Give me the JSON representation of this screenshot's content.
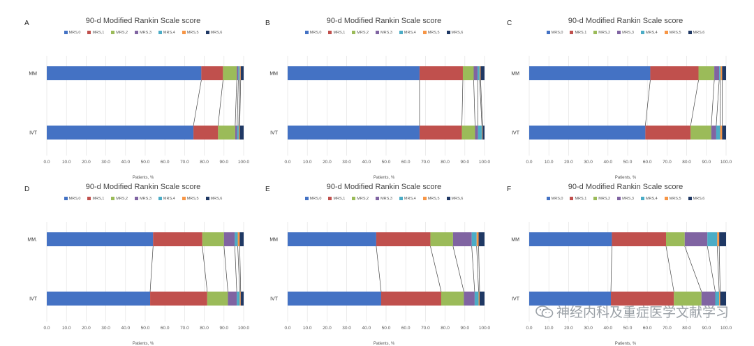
{
  "colors": {
    "MRS,0": "#4472C4",
    "MRS,1": "#C0504D",
    "MRS,2": "#9BBB59",
    "MRS,3": "#8064A2",
    "MRS,4": "#4BACC6",
    "MRS,5": "#F79646",
    "MRS,6": "#1F3864"
  },
  "watermark": {
    "text": "神经内科及重症医学文献学习",
    "icon": "wechat-icon"
  },
  "chart_data": [
    {
      "panel": "A",
      "type": "bar",
      "title": "90-d Modified Rankin Scale score",
      "xlabel": "Patients, %",
      "xlim": [
        0,
        100
      ],
      "xticks": [
        "0.0",
        "10.0",
        "20.0",
        "30.0",
        "40.0",
        "50.0",
        "60.0",
        "70.0",
        "80.0",
        "90.0",
        "100.0"
      ],
      "legend": [
        "MRS,0",
        "MRS,1",
        "MRS,2",
        "MRS,3",
        "MRS,4",
        "MRS,5",
        "MRS,6"
      ],
      "categories": [
        "MM",
        "IVT"
      ],
      "rows": [
        {
          "label": "MM",
          "values": [
            78.5,
            11.0,
            7.0,
            0.8,
            0.7,
            0.5,
            1.5
          ]
        },
        {
          "label": "IVT",
          "values": [
            74.5,
            12.5,
            8.7,
            1.0,
            0.8,
            0.5,
            2.0
          ]
        }
      ]
    },
    {
      "panel": "B",
      "type": "bar",
      "title": "90-d Modified Rankin Scale score",
      "xlabel": "Patients, %",
      "xlim": [
        0,
        100
      ],
      "xticks": [
        "0.0",
        "10.0",
        "20.0",
        "30.0",
        "40.0",
        "50.0",
        "60.0",
        "70.0",
        "80.0",
        "90.0",
        "100.0"
      ],
      "legend": [
        "MRS,0",
        "MRS,1",
        "MRS,2",
        "MRS,3",
        "MRS,4",
        "MRS,5",
        "MRS,6"
      ],
      "categories": [
        "MM",
        "IVT"
      ],
      "rows": [
        {
          "label": "MM",
          "values": [
            67.0,
            22.0,
            5.5,
            2.0,
            1.0,
            0.5,
            2.0
          ]
        },
        {
          "label": "IVT",
          "values": [
            67.0,
            21.5,
            6.7,
            1.5,
            2.0,
            0.3,
            1.0
          ]
        }
      ]
    },
    {
      "panel": "C",
      "type": "bar",
      "title": "90-d Modified Rankin Scale score",
      "xlabel": "Patients, %",
      "xlim": [
        0,
        100
      ],
      "xticks": [
        "0.0",
        "10.0",
        "20.0",
        "30.0",
        "40.0",
        "50.0",
        "60.0",
        "70.0",
        "80.0",
        "90.0",
        "100.0"
      ],
      "legend": [
        "MRS,0",
        "MRS,1",
        "MRS,2",
        "MRS,3",
        "MRS,4",
        "MRS,5",
        "MRS,6"
      ],
      "categories": [
        "MM",
        "IVT"
      ],
      "rows": [
        {
          "label": "MM",
          "values": [
            61.5,
            24.5,
            8.0,
            2.5,
            0.7,
            0.8,
            2.0
          ]
        },
        {
          "label": "IVT",
          "values": [
            59.0,
            23.0,
            10.5,
            2.5,
            2.0,
            1.0,
            2.0
          ]
        }
      ]
    },
    {
      "panel": "D",
      "type": "bar",
      "title": "90-d Modified Rankin Scale score",
      "xlabel": "Patients, %",
      "xlim": [
        0,
        100
      ],
      "xticks": [
        "0.0",
        "10.0",
        "20.0",
        "30.0",
        "40.0",
        "50.0",
        "60.0",
        "70.0",
        "80.0",
        "90.0",
        "100.0"
      ],
      "legend": [
        "MRS,0",
        "MRS,1",
        "MRS,2",
        "MRS,3",
        "MRS,4",
        "MRS,5",
        "MRS,6"
      ],
      "categories": [
        "MM.",
        "IVT"
      ],
      "rows": [
        {
          "label": "MM.",
          "values": [
            54.0,
            25.0,
            11.0,
            5.5,
            1.5,
            1.0,
            2.0
          ]
        },
        {
          "label": "IVT",
          "values": [
            52.5,
            29.0,
            10.5,
            4.5,
            1.5,
            0.5,
            1.5
          ]
        }
      ]
    },
    {
      "panel": "E",
      "type": "bar",
      "title": "90-d Modified Rankin Scale score",
      "xlabel": "Patients, %",
      "xlim": [
        0,
        100
      ],
      "xticks": [
        "0.0",
        "10.0",
        "20.0",
        "30.0",
        "40.0",
        "50.0",
        "60.0",
        "70.0",
        "80.0",
        "90.0",
        "100.0"
      ],
      "legend": [
        "MRS,0",
        "MRS,1",
        "MRS,2",
        "MRS,3",
        "MRS,4",
        "MRS,5",
        "MRS,6"
      ],
      "categories": [
        "MM",
        "IVT"
      ],
      "rows": [
        {
          "label": "MM",
          "values": [
            45.0,
            27.5,
            11.5,
            9.5,
            2.5,
            1.0,
            3.0
          ]
        },
        {
          "label": "IVT",
          "values": [
            47.5,
            30.5,
            11.5,
            5.5,
            2.0,
            0.5,
            2.5
          ]
        }
      ]
    },
    {
      "panel": "F",
      "type": "bar",
      "title": "90-d Modified Rankin Scale score",
      "xlabel": "Patients, %",
      "xlim": [
        0,
        100
      ],
      "xticks": [
        "0.0",
        "10.0",
        "20.0",
        "30.0",
        "40.0",
        "50.0",
        "60.0",
        "70.0",
        "80.0",
        "90.0",
        "100.0"
      ],
      "legend": [
        "MRS,0",
        "MRS,1",
        "MRS,2",
        "MRS,3",
        "MRS,4",
        "MRS,5",
        "MRS,6"
      ],
      "categories": [
        "MM",
        "IVT"
      ],
      "rows": [
        {
          "label": "MM",
          "values": [
            42.0,
            27.5,
            9.5,
            11.5,
            5.0,
            1.0,
            3.5
          ]
        },
        {
          "label": "IVT",
          "values": [
            41.5,
            32.0,
            14.0,
            7.0,
            2.0,
            0.5,
            3.0
          ]
        }
      ]
    }
  ]
}
